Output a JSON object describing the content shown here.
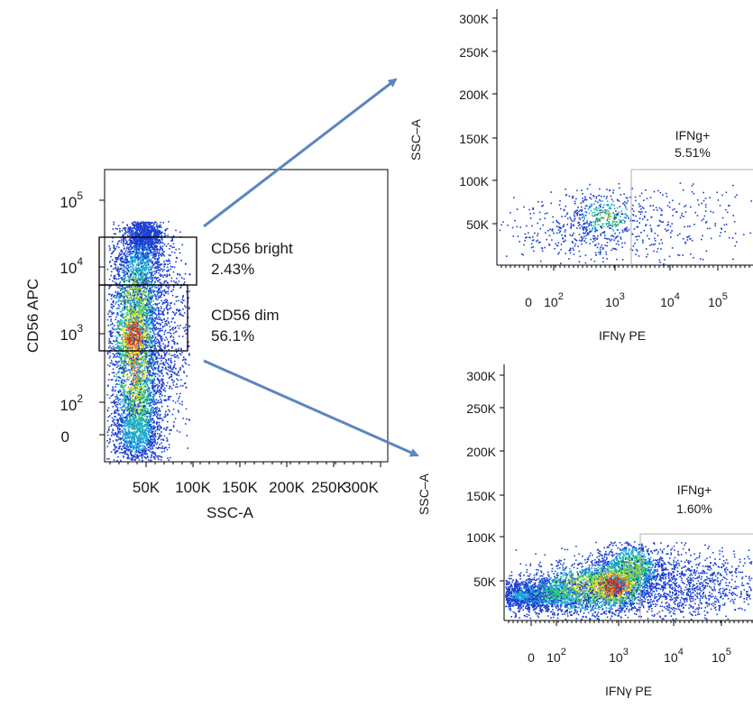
{
  "arrow_color": "#5b86bf",
  "chart_data": [
    {
      "type": "scatter",
      "name": "main-plot",
      "xlabel": "SSC-A",
      "ylabel": "CD56 APC",
      "x_ticks": [
        "50K",
        "100K",
        "150K",
        "200K",
        "250K",
        "300K"
      ],
      "y_ticks": [
        {
          "base": "10",
          "exp": "5"
        },
        {
          "base": "10",
          "exp": "4"
        },
        {
          "base": "10",
          "exp": "3"
        },
        {
          "base": "10",
          "exp": "2"
        },
        {
          "base": "0",
          "exp": ""
        }
      ],
      "gates": [
        {
          "name": "CD56 bright",
          "value": "2.43%"
        },
        {
          "name": "CD56 dim",
          "value": "56.1%"
        }
      ]
    },
    {
      "type": "scatter",
      "name": "top-right-plot",
      "xlabel": "IFNγ PE",
      "ylabel": "SSC–A",
      "x_ticks": [
        {
          "base": "0",
          "exp": ""
        },
        {
          "base": "10",
          "exp": "2"
        },
        {
          "base": "10",
          "exp": "3"
        },
        {
          "base": "10",
          "exp": "4"
        },
        {
          "base": "10",
          "exp": "5"
        }
      ],
      "y_ticks": [
        "300K",
        "250K",
        "200K",
        "150K",
        "100K",
        "50K"
      ],
      "gate": {
        "name": "IFNg+",
        "value": "5.51%"
      }
    },
    {
      "type": "scatter",
      "name": "bottom-right-plot",
      "xlabel": "IFNγ PE",
      "ylabel": "SSC–A",
      "x_ticks": [
        {
          "base": "0",
          "exp": ""
        },
        {
          "base": "10",
          "exp": "2"
        },
        {
          "base": "10",
          "exp": "3"
        },
        {
          "base": "10",
          "exp": "4"
        },
        {
          "base": "10",
          "exp": "5"
        }
      ],
      "y_ticks": [
        "300K",
        "250K",
        "200K",
        "150K",
        "100K",
        "50K"
      ],
      "gate": {
        "name": "IFNg+",
        "value": "1.60%"
      }
    }
  ]
}
